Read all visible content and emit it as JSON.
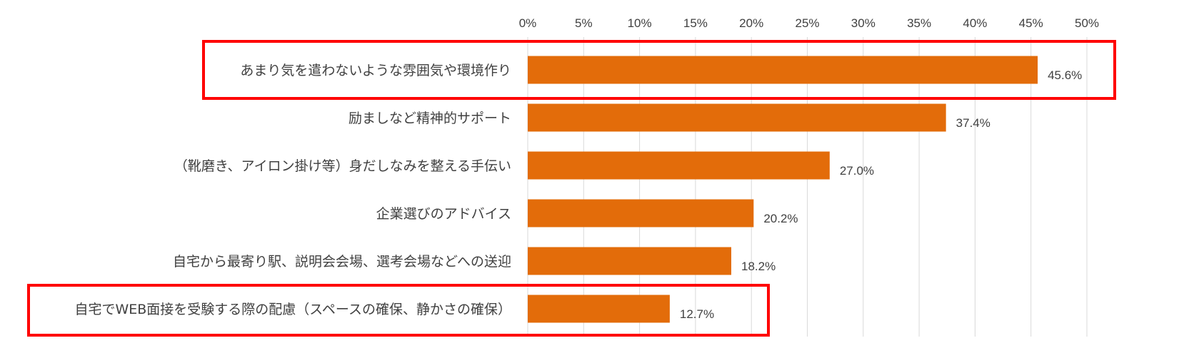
{
  "chart_data": {
    "type": "bar",
    "orientation": "horizontal",
    "categories": [
      "あまり気を遣わないような雰囲気や環境作り",
      "励ましなど精神的サポート",
      "（靴磨き、アイロン掛け等）身だしなみを整える手伝い",
      "企業選びのアドバイス",
      "自宅から最寄り駅、説明会会場、選考会場などへの送迎",
      "自宅でWEB面接を受験する際の配慮（スペースの確保、静かさの確保）"
    ],
    "values": [
      45.6,
      37.4,
      27.0,
      20.2,
      18.2,
      12.7
    ],
    "value_labels": [
      "45.6%",
      "37.4%",
      "27.0%",
      "20.2%",
      "18.2%",
      "12.7%"
    ],
    "xlim": [
      0,
      50
    ],
    "xticks": [
      0,
      5,
      10,
      15,
      20,
      25,
      30,
      35,
      40,
      45,
      50
    ],
    "xtick_labels": [
      "0%",
      "5%",
      "10%",
      "15%",
      "20%",
      "25%",
      "30%",
      "35%",
      "40%",
      "45%",
      "50%"
    ],
    "axis_position": "top",
    "grid": true,
    "highlighted_categories": [
      0,
      5
    ],
    "title": "",
    "xlabel": "",
    "ylabel": ""
  },
  "colors": {
    "bar": "#e36c0a",
    "grid": "#d9d9d9",
    "highlight": "#ff0000",
    "text": "#404040"
  }
}
